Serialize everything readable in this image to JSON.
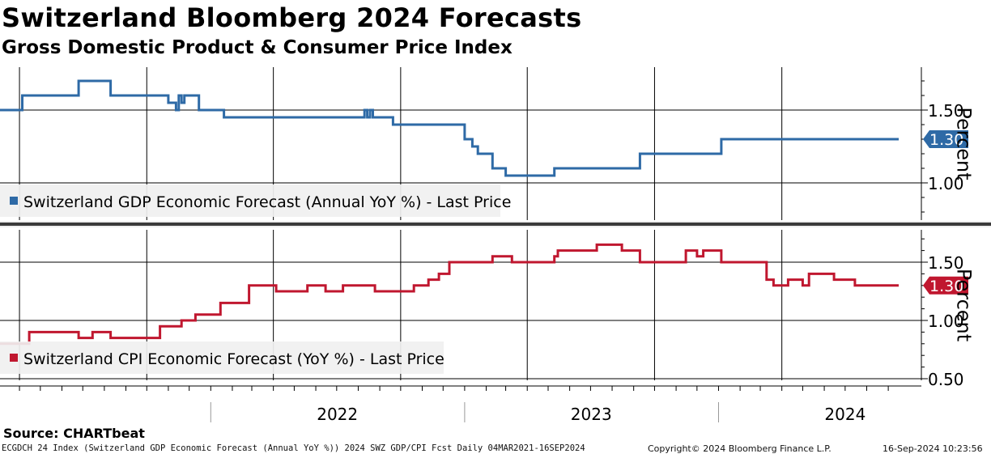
{
  "header": {
    "title": "Switzerland Bloomberg 2024 Forecasts",
    "subtitle": "Gross Domestic Product & Consumer Price Index"
  },
  "footer": {
    "source": "Source: CHARTbeat",
    "left": "ECGDCH 24 Index (Switzerland GDP Economic Forecast (Annual YoY %)) 2024 SWZ GDP/CPI Fcst  Daily 04MAR2021-16SEP2024",
    "copyright": "Copyright© 2024 Bloomberg Finance L.P.",
    "timestamp": "16-Sep-2024 10:23:56"
  },
  "colors": {
    "gdp": "#2e6aa6",
    "cpi": "#c0172f",
    "grid": "#000000",
    "separator": "#3a3a3a"
  },
  "chart_data": [
    {
      "type": "line",
      "panel": "top",
      "series": [
        {
          "name": "Switzerland GDP Economic Forecast (Annual YoY %) - Last Price",
          "x": [
            "2021-03-04",
            "2021-03-25",
            "2021-04-05",
            "2021-05-20",
            "2021-06-25",
            "2021-08-05",
            "2021-08-10",
            "2021-08-15",
            "2021-08-20",
            "2021-08-25",
            "2021-09-10",
            "2021-10-25",
            "2021-11-01",
            "2021-11-08",
            "2021-11-12",
            "2021-11-16",
            "2021-11-20",
            "2021-11-24",
            "2021-12-01",
            "2021-12-15",
            "2022-01-10",
            "2022-01-20",
            "2022-03-01",
            "2022-04-10",
            "2022-05-05",
            "2022-06-25",
            "2022-08-01",
            "2022-08-10",
            "2022-08-14",
            "2022-08-18",
            "2022-08-22",
            "2022-08-26",
            "2022-08-30",
            "2022-09-20",
            "2022-10-05",
            "2022-10-25",
            "2022-11-15",
            "2022-12-01",
            "2022-12-15",
            "2023-01-01",
            "2023-01-05",
            "2023-01-12",
            "2023-01-16",
            "2023-01-20",
            "2023-01-26",
            "2023-02-10",
            "2023-02-20",
            "2023-03-01",
            "2023-04-15",
            "2023-05-10",
            "2023-06-15",
            "2023-07-01",
            "2023-07-15",
            "2023-07-31",
            "2023-08-10",
            "2023-08-15",
            "2023-09-01",
            "2023-09-10",
            "2023-09-20",
            "2023-10-01",
            "2023-11-10",
            "2023-12-25",
            "2023-12-28",
            "2024-01-05",
            "2024-05-01",
            "2024-06-05",
            "2024-06-15",
            "2024-09-16"
          ],
          "y": [
            1.5,
            1.5,
            1.6,
            1.6,
            1.7,
            1.7,
            1.6,
            1.6,
            1.6,
            1.6,
            1.6,
            1.6,
            1.55,
            1.55,
            1.5,
            1.6,
            1.55,
            1.6,
            1.6,
            1.5,
            1.5,
            1.45,
            1.45,
            1.45,
            1.45,
            1.45,
            1.45,
            1.5,
            1.45,
            1.5,
            1.45,
            1.45,
            1.45,
            1.4,
            1.4,
            1.4,
            1.4,
            1.4,
            1.4,
            1.3,
            1.3,
            1.25,
            1.25,
            1.2,
            1.2,
            1.1,
            1.1,
            1.05,
            1.05,
            1.1,
            1.1,
            1.1,
            1.1,
            1.1,
            1.1,
            1.1,
            1.1,
            1.2,
            1.2,
            1.2,
            1.2,
            1.2,
            1.2,
            1.3,
            1.3,
            1.3,
            1.3,
            1.3
          ],
          "last": 1.3,
          "last_label": "1.30"
        }
      ],
      "y_ticks": [
        "1.50",
        "1.00"
      ],
      "ylabel": "Percent",
      "ylim": [
        0.75,
        1.8
      ]
    },
    {
      "type": "line",
      "panel": "bottom",
      "series": [
        {
          "name": "Switzerland CPI Economic Forecast (YoY %) - Last Price",
          "x": [
            "2021-03-04",
            "2021-04-15",
            "2021-06-05",
            "2021-06-25",
            "2021-07-15",
            "2021-08-10",
            "2021-09-01",
            "2021-09-10",
            "2021-10-01",
            "2021-10-20",
            "2021-11-05",
            "2021-11-20",
            "2021-12-10",
            "2022-01-15",
            "2022-02-15",
            "2022-02-25",
            "2022-03-15",
            "2022-04-05",
            "2022-04-20",
            "2022-05-20",
            "2022-06-10",
            "2022-06-15",
            "2022-07-10",
            "2022-08-15",
            "2022-08-25",
            "2022-10-10",
            "2022-10-20",
            "2022-11-10",
            "2022-11-25",
            "2022-12-10",
            "2023-01-01",
            "2023-01-10",
            "2023-01-20",
            "2023-02-10",
            "2023-02-20",
            "2023-03-10",
            "2023-04-01",
            "2023-04-25",
            "2023-05-10",
            "2023-05-15",
            "2023-05-25",
            "2023-07-01",
            "2023-07-10",
            "2023-08-15",
            "2023-09-10",
            "2023-09-25",
            "2023-10-05",
            "2023-11-15",
            "2023-12-01",
            "2023-12-10",
            "2024-01-05",
            "2024-03-01",
            "2024-03-10",
            "2024-03-20",
            "2024-04-10",
            "2024-05-01",
            "2024-05-10",
            "2024-06-01",
            "2024-06-15",
            "2024-07-15",
            "2024-09-16"
          ],
          "y": [
            0.8,
            0.9,
            0.9,
            0.85,
            0.9,
            0.85,
            0.85,
            0.85,
            0.85,
            0.95,
            0.95,
            1.0,
            1.05,
            1.15,
            1.15,
            1.3,
            1.3,
            1.25,
            1.25,
            1.3,
            1.3,
            1.25,
            1.3,
            1.3,
            1.25,
            1.25,
            1.3,
            1.35,
            1.4,
            1.5,
            1.5,
            1.5,
            1.5,
            1.55,
            1.55,
            1.5,
            1.5,
            1.5,
            1.55,
            1.6,
            1.6,
            1.6,
            1.65,
            1.6,
            1.5,
            1.5,
            1.5,
            1.6,
            1.55,
            1.6,
            1.5,
            1.5,
            1.35,
            1.3,
            1.35,
            1.3,
            1.4,
            1.4,
            1.35,
            1.3,
            1.3
          ],
          "last": 1.3,
          "last_label": "1.30"
        }
      ],
      "y_ticks": [
        "1.50",
        "1.00",
        "0.50"
      ],
      "ylabel": "Percent",
      "ylim": [
        0.4,
        1.8
      ]
    }
  ],
  "x_axis": {
    "labels": [
      {
        "text": "2022",
        "date": "2022-07-02"
      },
      {
        "text": "2023",
        "date": "2023-07-02"
      },
      {
        "text": "2024",
        "date": "2024-07-01"
      }
    ],
    "year_boundaries": [
      "2022-01-01",
      "2023-01-01",
      "2024-01-01"
    ],
    "gridlines": [
      "2021-04-01",
      "2021-10-01",
      "2022-04-01",
      "2022-10-01",
      "2023-04-01",
      "2023-10-01",
      "2024-04-01"
    ]
  }
}
